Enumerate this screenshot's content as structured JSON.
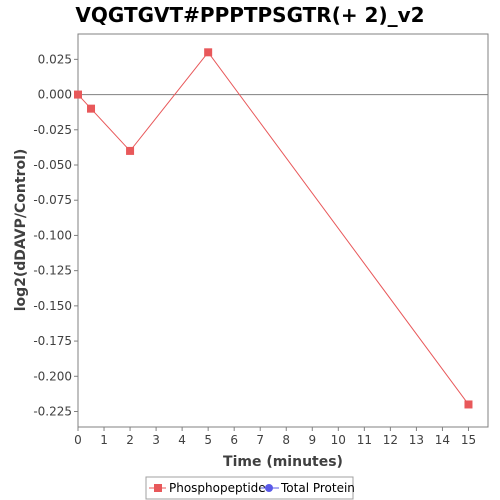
{
  "chart_data": {
    "type": "line",
    "title": "VQGTGVT#PPPTPSGTR(+ 2)_v2",
    "xlabel": "Time (minutes)",
    "ylabel": "log2(dDAVP/Control)",
    "xlim": [
      0,
      15.75
    ],
    "ylim": [
      -0.236,
      0.043
    ],
    "x_ticks": [
      "0",
      "1",
      "2",
      "3",
      "4",
      "5",
      "6",
      "7",
      "8",
      "9",
      "10",
      "11",
      "12",
      "13",
      "14",
      "15"
    ],
    "y_ticks": [
      "0.025",
      "0.000",
      "-0.025",
      "-0.050",
      "-0.075",
      "-0.100",
      "-0.125",
      "-0.150",
      "-0.175",
      "-0.200",
      "-0.225"
    ],
    "grid": false,
    "zero_line": true,
    "legend_position": "bottom-center",
    "series": [
      {
        "name": "Phosphopeptide",
        "color": "#e8585a",
        "marker": "square",
        "x": [
          0,
          0.5,
          2,
          5,
          15
        ],
        "y": [
          0.0,
          -0.01,
          -0.04,
          0.03,
          -0.22
        ]
      },
      {
        "name": "Total Protein",
        "color": "#5a5ae8",
        "marker": "circle",
        "x": [],
        "y": []
      }
    ]
  }
}
